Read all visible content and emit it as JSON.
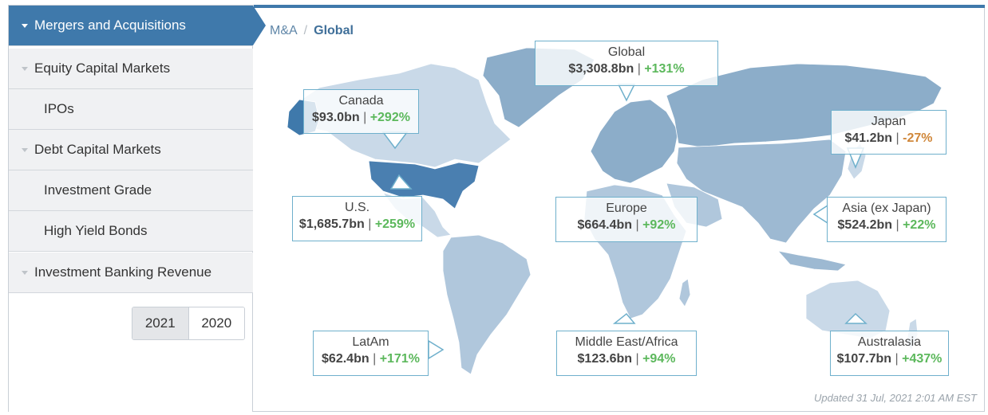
{
  "sidebar": {
    "items": [
      {
        "label": "Mergers and Acquisitions",
        "active": true
      },
      {
        "label": "Equity Capital Markets"
      },
      {
        "label": "IPOs"
      },
      {
        "label": "Debt Capital Markets"
      },
      {
        "label": "Investment Grade"
      },
      {
        "label": "High Yield Bonds"
      },
      {
        "label": "Investment Banking Revenue"
      }
    ],
    "years": [
      "2021",
      "2020"
    ],
    "selected_year": "2021"
  },
  "breadcrumb": {
    "root": "M&A",
    "separator": "/",
    "current": "Global"
  },
  "regions": {
    "global": {
      "name": "Global",
      "value": "$3,308.8bn",
      "change": "+131%"
    },
    "canada": {
      "name": "Canada",
      "value": "$93.0bn",
      "change": "+292%"
    },
    "japan": {
      "name": "Japan",
      "value": "$41.2bn",
      "change": "-27%"
    },
    "us": {
      "name": "U.S.",
      "value": "$1,685.7bn",
      "change": "+259%"
    },
    "europe": {
      "name": "Europe",
      "value": "$664.4bn",
      "change": "+92%"
    },
    "asia": {
      "name": "Asia (ex Japan)",
      "value": "$524.2bn",
      "change": "+22%"
    },
    "latam": {
      "name": "LatAm",
      "value": "$62.4bn",
      "change": "+171%"
    },
    "mea": {
      "name": "Middle East/Africa",
      "value": "$123.6bn",
      "change": "+94%"
    },
    "australasia": {
      "name": "Australasia",
      "value": "$107.7bn",
      "change": "+437%"
    }
  },
  "separator": "|",
  "updated": "Updated 31 Jul, 2021 2:01 AM EST",
  "colors": {
    "accent": "#3f79ab",
    "positive": "#5cb85c",
    "negative": "#d0873a",
    "callout_border": "#6fb0cc"
  }
}
